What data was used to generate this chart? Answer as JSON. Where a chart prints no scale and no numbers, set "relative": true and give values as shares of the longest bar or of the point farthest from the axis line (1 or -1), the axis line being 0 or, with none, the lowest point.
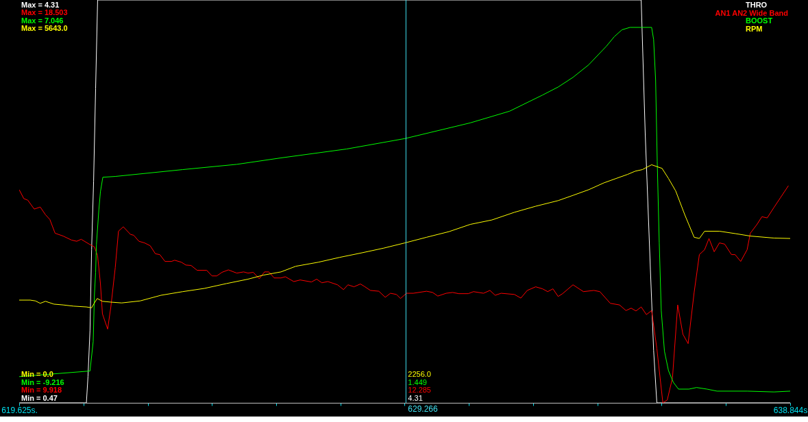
{
  "chart_data": {
    "type": "line",
    "relative": true,
    "xlim": [
      619.625,
      638.844
    ],
    "xticks": [
      {
        "value": 619.625,
        "label": "619.625s."
      },
      {
        "value": 621.23,
        "label": null
      },
      {
        "value": 622.83,
        "label": null
      },
      {
        "value": 624.43,
        "label": null
      },
      {
        "value": 626.03,
        "label": null
      },
      {
        "value": 627.63,
        "label": null
      },
      {
        "value": 629.23,
        "label": null
      },
      {
        "value": 630.84,
        "label": null
      },
      {
        "value": 632.44,
        "label": null
      },
      {
        "value": 634.04,
        "label": null
      },
      {
        "value": 635.64,
        "label": null
      },
      {
        "value": 637.24,
        "label": null
      },
      {
        "value": 638.844,
        "label": "638.844s"
      }
    ],
    "ref_lines": [
      {
        "axis": "x",
        "value": 629.266,
        "label": "629.266",
        "color": "#40e0f0"
      }
    ],
    "annotations": [
      "Max = 4.31",
      "Max = 18.503",
      "Max = 7.046",
      "Max = 5643.0",
      "Min = 0.0",
      "Min = -9.216",
      "Min = 9.918",
      "Min = 0.47",
      "2256.0",
      "1.449",
      "12.285",
      "4.31"
    ],
    "series": [
      {
        "name": "THRO",
        "color": "#ffffff",
        "x": [
          619.625,
          621.3,
          621.34,
          621.39,
          621.43,
          621.48,
          621.53,
          621.58,
          635.13,
          635.23,
          635.36,
          635.44,
          635.52,
          638.844
        ],
        "values": [
          0,
          0,
          0.065,
          0.18,
          0.38,
          0.55,
          0.78,
          1,
          1,
          0.67,
          0.33,
          0.13,
          0,
          0
        ]
      },
      {
        "name": "AN1 AN2 Wide Band",
        "color": "#ff0000",
        "x": [
          619.625,
          619.74,
          619.84,
          620.0,
          620.15,
          620.28,
          620.39,
          620.52,
          620.72,
          620.93,
          621.06,
          621.17,
          621.37,
          621.5,
          621.58,
          621.65,
          621.7,
          621.83,
          621.91,
          622.02,
          622.1,
          622.22,
          622.4,
          622.48,
          622.61,
          622.75,
          622.89,
          623.02,
          623.13,
          623.26,
          623.42,
          623.5,
          623.67,
          623.78,
          623.91,
          624.06,
          624.3,
          624.43,
          624.55,
          624.68,
          624.84,
          625.05,
          625.22,
          625.33,
          625.46,
          625.61,
          625.74,
          625.85,
          625.98,
          626.15,
          626.26,
          626.47,
          626.63,
          626.91,
          627.04,
          627.17,
          627.32,
          627.56,
          627.71,
          627.82,
          627.97,
          628.13,
          628.23,
          628.38,
          628.59,
          628.75,
          628.88,
          629.03,
          629.13,
          629.28,
          629.45,
          629.78,
          629.93,
          630.06,
          630.27,
          630.43,
          630.58,
          630.82,
          630.95,
          631.2,
          631.36,
          631.49,
          631.64,
          631.97,
          632.13,
          632.29,
          632.5,
          632.67,
          632.8,
          632.93,
          633.06,
          633.17,
          633.43,
          633.69,
          633.95,
          634.1,
          634.36,
          634.59,
          634.75,
          634.88,
          635.0,
          635.13,
          635.26,
          635.39,
          635.52,
          635.67,
          635.78,
          635.91,
          636.04,
          636.17,
          636.3,
          636.45,
          636.58,
          636.71,
          636.82,
          636.95,
          637.08,
          637.21,
          637.38,
          637.47,
          637.61,
          637.77,
          637.85,
          638.01,
          638.14,
          638.27,
          638.44,
          638.6,
          638.8
        ],
        "values": [
          0.529,
          0.507,
          0.503,
          0.481,
          0.486,
          0.467,
          0.455,
          0.421,
          0.414,
          0.404,
          0.401,
          0.406,
          0.394,
          0.387,
          0.365,
          0.296,
          0.221,
          0.183,
          0.238,
          0.336,
          0.426,
          0.437,
          0.418,
          0.416,
          0.401,
          0.397,
          0.39,
          0.37,
          0.368,
          0.351,
          0.351,
          0.354,
          0.349,
          0.342,
          0.341,
          0.329,
          0.329,
          0.315,
          0.315,
          0.324,
          0.33,
          0.322,
          0.325,
          0.322,
          0.324,
          0.308,
          0.325,
          0.325,
          0.31,
          0.31,
          0.313,
          0.301,
          0.305,
          0.3,
          0.307,
          0.298,
          0.301,
          0.293,
          0.281,
          0.293,
          0.288,
          0.295,
          0.289,
          0.279,
          0.277,
          0.262,
          0.272,
          0.269,
          0.259,
          0.272,
          0.272,
          0.277,
          0.274,
          0.265,
          0.272,
          0.274,
          0.271,
          0.271,
          0.276,
          0.272,
          0.279,
          0.267,
          0.272,
          0.269,
          0.26,
          0.279,
          0.288,
          0.283,
          0.276,
          0.283,
          0.264,
          0.271,
          0.293,
          0.276,
          0.279,
          0.276,
          0.247,
          0.243,
          0.229,
          0.235,
          0.228,
          0.238,
          0.219,
          0.229,
          0.135,
          0,
          0.007,
          0.062,
          0.243,
          0.17,
          0.147,
          0.274,
          0.368,
          0.38,
          0.408,
          0.375,
          0.397,
          0.394,
          0.368,
          0.368,
          0.351,
          0.38,
          0.421,
          0.442,
          0.462,
          0.459,
          0.485,
          0.509,
          0.539
        ]
      },
      {
        "name": "BOOST",
        "color": "#00ff00",
        "x": [
          619.625,
          621.39,
          621.47,
          621.5,
          621.53,
          621.55,
          621.61,
          621.65,
          621.71,
          622.02,
          623.7,
          625.05,
          626.15,
          627.78,
          629.24,
          630.87,
          631.85,
          632.67,
          633.06,
          633.43,
          633.82,
          634.26,
          634.46,
          634.65,
          634.85,
          635.39,
          635.44,
          635.49,
          635.53,
          635.58,
          635.63,
          635.71,
          635.81,
          635.93,
          636.06,
          636.32,
          636.51,
          636.77,
          637.02,
          637.78,
          638.44,
          638.844
        ],
        "values": [
          0.065,
          0.079,
          0.152,
          0.267,
          0.324,
          0.392,
          0.478,
          0.524,
          0.56,
          0.562,
          0.579,
          0.592,
          0.608,
          0.63,
          0.656,
          0.695,
          0.724,
          0.764,
          0.784,
          0.808,
          0.839,
          0.885,
          0.909,
          0.926,
          0.932,
          0.932,
          0.902,
          0.801,
          0.599,
          0.397,
          0.229,
          0.128,
          0.08,
          0.051,
          0.034,
          0.034,
          0.038,
          0.034,
          0.029,
          0.029,
          0.027,
          0.029
        ]
      },
      {
        "name": "RPM",
        "color": "#ffff00",
        "x": [
          619.625,
          619.9,
          620.03,
          620.15,
          620.28,
          620.49,
          620.72,
          620.98,
          621.3,
          621.43,
          621.5,
          621.57,
          621.7,
          621.91,
          622.18,
          622.64,
          623.16,
          623.7,
          624.24,
          624.79,
          625.33,
          625.71,
          626.15,
          626.52,
          627.08,
          627.61,
          628.15,
          628.71,
          629.24,
          629.78,
          630.34,
          630.87,
          631.41,
          631.97,
          632.5,
          633.06,
          633.43,
          633.82,
          634.2,
          634.59,
          634.79,
          634.98,
          635.16,
          635.39,
          635.65,
          635.81,
          635.99,
          636.22,
          636.45,
          636.58,
          636.71,
          637.08,
          637.48,
          637.85,
          638.44,
          638.844
        ],
        "values": [
          0.255,
          0.255,
          0.253,
          0.247,
          0.252,
          0.245,
          0.243,
          0.24,
          0.238,
          0.236,
          0.248,
          0.259,
          0.252,
          0.25,
          0.248,
          0.253,
          0.267,
          0.276,
          0.284,
          0.296,
          0.307,
          0.317,
          0.325,
          0.339,
          0.349,
          0.361,
          0.372,
          0.384,
          0.397,
          0.411,
          0.425,
          0.443,
          0.454,
          0.473,
          0.488,
          0.502,
          0.515,
          0.529,
          0.546,
          0.56,
          0.567,
          0.575,
          0.579,
          0.591,
          0.582,
          0.557,
          0.526,
          0.466,
          0.411,
          0.408,
          0.426,
          0.426,
          0.42,
          0.414,
          0.409,
          0.408
        ]
      }
    ]
  }
}
